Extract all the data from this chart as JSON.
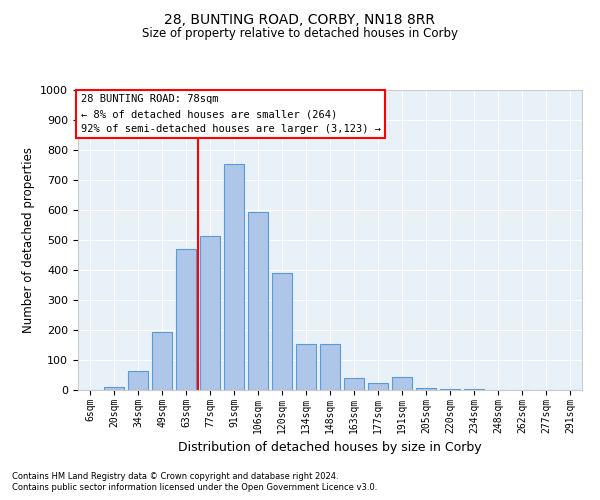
{
  "title1": "28, BUNTING ROAD, CORBY, NN18 8RR",
  "title2": "Size of property relative to detached houses in Corby",
  "xlabel": "Distribution of detached houses by size in Corby",
  "ylabel": "Number of detached properties",
  "categories": [
    "6sqm",
    "20sqm",
    "34sqm",
    "49sqm",
    "63sqm",
    "77sqm",
    "91sqm",
    "106sqm",
    "120sqm",
    "134sqm",
    "148sqm",
    "163sqm",
    "177sqm",
    "191sqm",
    "205sqm",
    "220sqm",
    "234sqm",
    "248sqm",
    "262sqm",
    "277sqm",
    "291sqm"
  ],
  "values": [
    0,
    10,
    65,
    195,
    470,
    515,
    755,
    595,
    390,
    155,
    155,
    40,
    22,
    45,
    8,
    4,
    2,
    1,
    0,
    0,
    0
  ],
  "bar_color": "#aec6e8",
  "bar_edge_color": "#5b9bd5",
  "bg_color": "#e8f0f8",
  "grid_color": "#ffffff",
  "vline_color": "red",
  "vline_pos": 4.5,
  "annotation_text": "28 BUNTING ROAD: 78sqm\n← 8% of detached houses are smaller (264)\n92% of semi-detached houses are larger (3,123) →",
  "annotation_box_color": "white",
  "annotation_box_edge": "red",
  "ylim": [
    0,
    1000
  ],
  "yticks": [
    0,
    100,
    200,
    300,
    400,
    500,
    600,
    700,
    800,
    900,
    1000
  ],
  "footnote1": "Contains HM Land Registry data © Crown copyright and database right 2024.",
  "footnote2": "Contains public sector information licensed under the Open Government Licence v3.0."
}
